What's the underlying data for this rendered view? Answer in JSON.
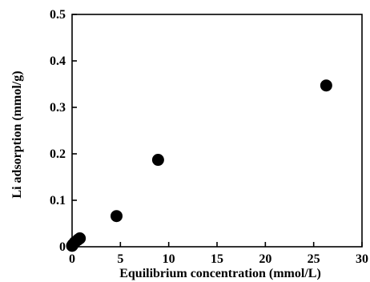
{
  "chart_data": {
    "type": "scatter",
    "title": "",
    "xlabel": "Equilibrium concentration (mmol/L)",
    "ylabel": "Li adsorption (mmol/g)",
    "xlim": [
      0,
      30
    ],
    "ylim": [
      0,
      0.5
    ],
    "x_ticks": [
      0,
      5,
      10,
      15,
      20,
      25,
      30
    ],
    "y_ticks": [
      0,
      0.1,
      0.2,
      0.3,
      0.4,
      0.5
    ],
    "x_tick_labels": [
      "0",
      "5",
      "10",
      "15",
      "20",
      "25",
      "30"
    ],
    "y_tick_labels": [
      "0",
      "0.1",
      "0.2",
      "0.3",
      "0.4",
      "0.5"
    ],
    "grid": false,
    "marker": "filled-circle",
    "marker_color": "#000000",
    "series": [
      {
        "points": [
          {
            "x": 0.0,
            "y": 0.002
          },
          {
            "x": 0.1,
            "y": 0.005
          },
          {
            "x": 0.3,
            "y": 0.01
          },
          {
            "x": 0.6,
            "y": 0.015
          },
          {
            "x": 0.8,
            "y": 0.018
          },
          {
            "x": 4.6,
            "y": 0.066
          },
          {
            "x": 8.9,
            "y": 0.187
          },
          {
            "x": 26.3,
            "y": 0.347
          }
        ]
      }
    ]
  }
}
